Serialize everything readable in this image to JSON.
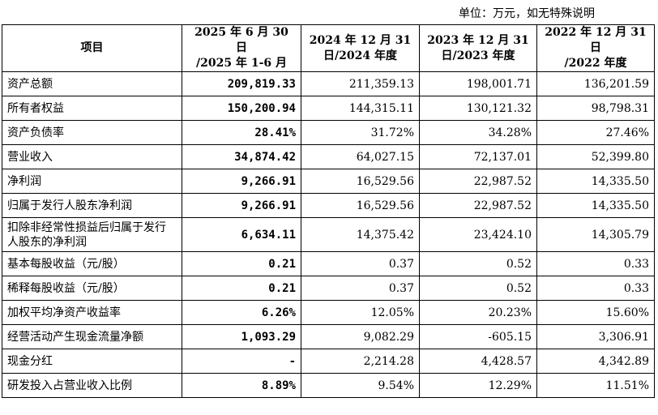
{
  "unit_note": "单位：万元，如无特殊说明",
  "headers": {
    "item": "项目",
    "col1": [
      "2025 年 6 月 30 日",
      "/2025 年 1-6 月"
    ],
    "col2": [
      "2024 年 12 月 31",
      "日/2024 年度"
    ],
    "col3": [
      "2023 年 12 月 31",
      "日/2023 年度"
    ],
    "col4": [
      "2022 年 12 月 31 日",
      "/2022 年度"
    ]
  },
  "rows": [
    {
      "label": "资产总额",
      "values": [
        "209,819.33",
        "211,359.13",
        "198,001.71",
        "136,201.59"
      ]
    },
    {
      "label": "所有者权益",
      "values": [
        "150,200.94",
        "144,315.11",
        "130,121.32",
        "98,798.31"
      ]
    },
    {
      "label": "资产负债率",
      "values": [
        "28.41%",
        "31.72%",
        "34.28%",
        "27.46%"
      ]
    },
    {
      "label": "营业收入",
      "values": [
        "34,874.42",
        "64,027.15",
        "72,137.01",
        "52,399.80"
      ]
    },
    {
      "label": "净利润",
      "values": [
        "9,266.91",
        "16,529.56",
        "22,987.52",
        "14,335.50"
      ]
    },
    {
      "label": "归属于发行人股东净利润",
      "values": [
        "9,266.91",
        "16,529.56",
        "22,987.52",
        "14,335.50"
      ]
    },
    {
      "label": "扣除非经常性损益后归属于发行人股东的净利润",
      "values": [
        "6,634.11",
        "14,375.42",
        "23,424.10",
        "14,305.79"
      ]
    },
    {
      "label": "基本每股收益（元/股）",
      "values": [
        "0.21",
        "0.37",
        "0.52",
        "0.33"
      ]
    },
    {
      "label": "稀释每股收益（元/股）",
      "values": [
        "0.21",
        "0.37",
        "0.52",
        "0.33"
      ]
    },
    {
      "label": "加权平均净资产收益率",
      "values": [
        "6.26%",
        "12.05%",
        "20.23%",
        "15.60%"
      ]
    },
    {
      "label": "经营活动产生现金流量净额",
      "values": [
        "1,093.29",
        "9,082.29",
        "-605.15",
        "3,306.91"
      ]
    },
    {
      "label": "现金分红",
      "values": [
        "-",
        "2,214.28",
        "4,428.57",
        "4,342.89"
      ]
    },
    {
      "label": "研发投入占营业收入比例",
      "values": [
        "8.89%",
        "9.54%",
        "12.29%",
        "11.51%"
      ]
    }
  ]
}
